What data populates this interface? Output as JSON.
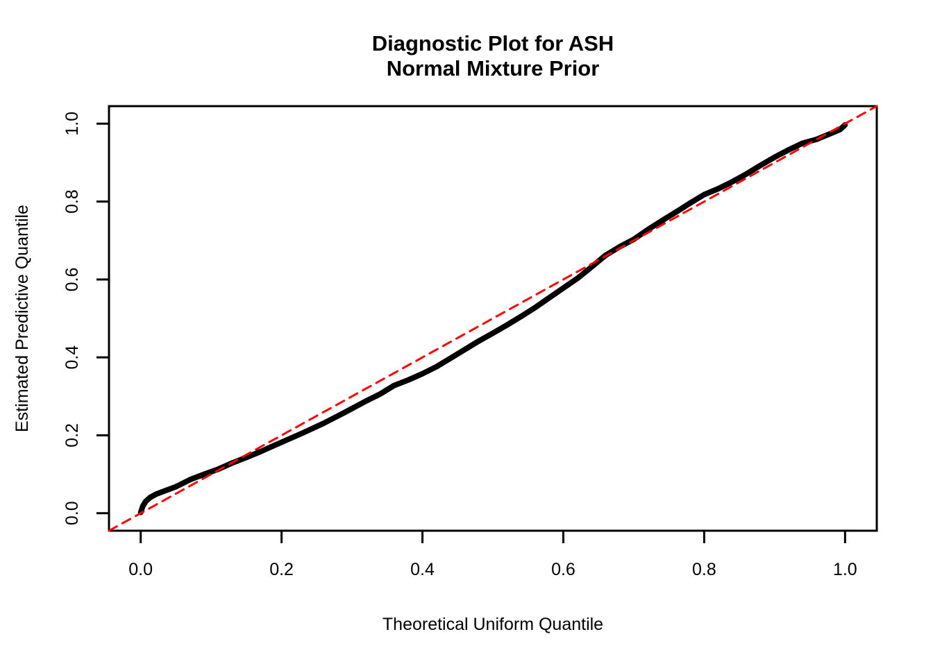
{
  "figure": {
    "background_color": "#ffffff",
    "title_lines": [
      "Diagnostic Plot for ASH",
      "Normal Mixture Prior"
    ]
  },
  "chart_data": {
    "type": "line",
    "title": "Diagnostic Plot for ASH\nNormal Mixture Prior",
    "xlabel": "Theoretical Uniform Quantile",
    "ylabel": "Estimated Predictive Quantile",
    "xlim": [
      -0.045,
      1.045
    ],
    "ylim": [
      -0.045,
      1.045
    ],
    "grid": false,
    "legend": null,
    "x_axis": {
      "tick_values": [
        0.0,
        0.2,
        0.4,
        0.6,
        0.8,
        1.0
      ],
      "tick_labels": [
        "0.0",
        "0.2",
        "0.4",
        "0.6",
        "0.8",
        "1.0"
      ]
    },
    "y_axis": {
      "tick_values": [
        0.0,
        0.2,
        0.4,
        0.6,
        0.8,
        1.0
      ],
      "tick_labels": [
        "0.0",
        "0.2",
        "0.4",
        "0.6",
        "0.8",
        "1.0"
      ]
    },
    "series": [
      {
        "name": "estimated-predictive-quantiles",
        "color": "#000000",
        "line_style": "solid",
        "line_width": 8,
        "points": [
          [
            0.0,
            0.002
          ],
          [
            0.003,
            0.018
          ],
          [
            0.007,
            0.03
          ],
          [
            0.013,
            0.04
          ],
          [
            0.022,
            0.049
          ],
          [
            0.035,
            0.058
          ],
          [
            0.05,
            0.068
          ],
          [
            0.07,
            0.086
          ],
          [
            0.09,
            0.1
          ],
          [
            0.11,
            0.113
          ],
          [
            0.13,
            0.129
          ],
          [
            0.15,
            0.143
          ],
          [
            0.17,
            0.158
          ],
          [
            0.2,
            0.182
          ],
          [
            0.23,
            0.206
          ],
          [
            0.26,
            0.231
          ],
          [
            0.29,
            0.259
          ],
          [
            0.32,
            0.288
          ],
          [
            0.34,
            0.306
          ],
          [
            0.36,
            0.328
          ],
          [
            0.38,
            0.342
          ],
          [
            0.4,
            0.358
          ],
          [
            0.42,
            0.376
          ],
          [
            0.44,
            0.398
          ],
          [
            0.46,
            0.42
          ],
          [
            0.48,
            0.442
          ],
          [
            0.5,
            0.462
          ],
          [
            0.52,
            0.483
          ],
          [
            0.54,
            0.505
          ],
          [
            0.56,
            0.528
          ],
          [
            0.58,
            0.553
          ],
          [
            0.6,
            0.578
          ],
          [
            0.62,
            0.603
          ],
          [
            0.64,
            0.632
          ],
          [
            0.66,
            0.662
          ],
          [
            0.68,
            0.684
          ],
          [
            0.7,
            0.703
          ],
          [
            0.72,
            0.728
          ],
          [
            0.74,
            0.751
          ],
          [
            0.76,
            0.773
          ],
          [
            0.78,
            0.796
          ],
          [
            0.8,
            0.818
          ],
          [
            0.82,
            0.833
          ],
          [
            0.84,
            0.851
          ],
          [
            0.86,
            0.871
          ],
          [
            0.88,
            0.893
          ],
          [
            0.9,
            0.914
          ],
          [
            0.92,
            0.933
          ],
          [
            0.94,
            0.95
          ],
          [
            0.96,
            0.96
          ],
          [
            0.98,
            0.975
          ],
          [
            0.993,
            0.985
          ],
          [
            1.0,
            0.997
          ]
        ]
      },
      {
        "name": "identity-reference-line",
        "color": "#FF0000",
        "line_style": "dashed",
        "line_width": 3,
        "slope": 1,
        "intercept": 0,
        "points": [
          [
            -0.045,
            -0.045
          ],
          [
            1.045,
            1.045
          ]
        ]
      }
    ]
  }
}
